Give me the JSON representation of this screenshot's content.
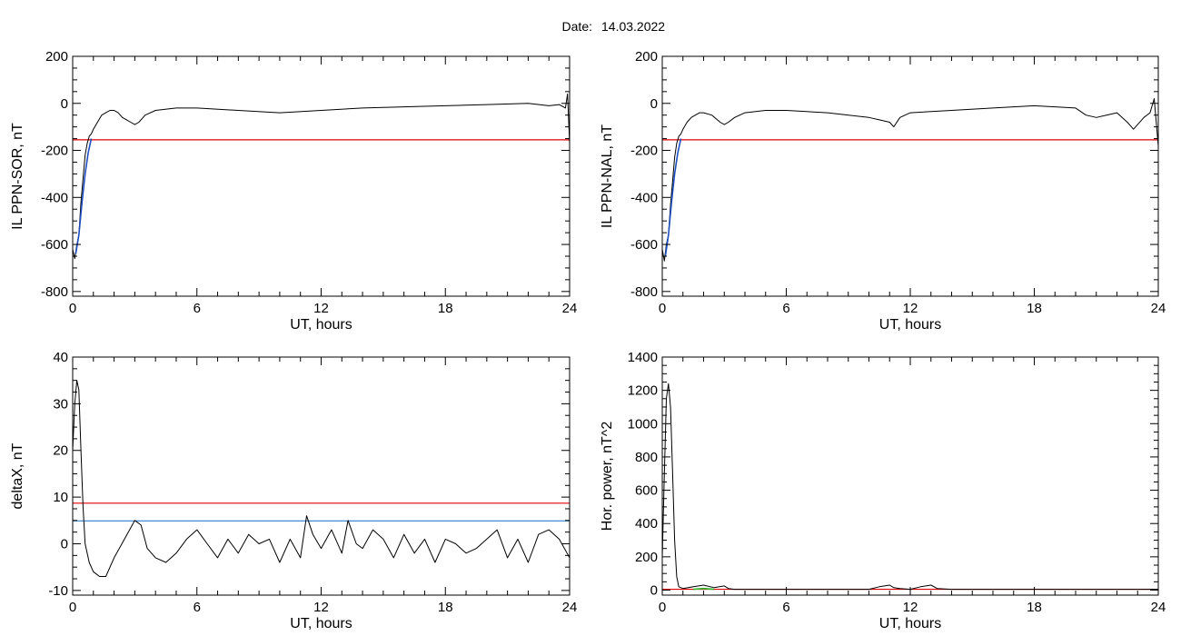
{
  "header": {
    "date_label": "Date:",
    "date_value": "14.03.2022"
  },
  "colors": {
    "background": "#ffffff",
    "axis": "#000000",
    "data_line": "#000000",
    "threshold_red": "#e00000",
    "threshold_blue": "#2a7fcf",
    "fit_blue": "#1f4fbf",
    "aux_green": "#2db52d"
  },
  "chart_data": [
    {
      "type": "line",
      "xlabel": "UT, hours",
      "ylabel": "IL PPN-SOR, nT",
      "xlim": [
        0,
        24
      ],
      "ylim": [
        -820,
        200
      ],
      "xticks": [
        0,
        6,
        12,
        18,
        24
      ],
      "yticks": [
        -800,
        -600,
        -400,
        -200,
        0,
        200
      ],
      "series": [
        {
          "values_x": [
            0.0,
            0.1,
            0.2,
            0.3,
            0.4,
            0.5,
            0.6,
            0.7,
            0.8,
            0.9,
            1.0,
            1.2,
            1.4,
            1.6,
            1.8,
            2.0,
            2.2,
            2.4,
            2.6,
            2.8,
            3.0,
            3.2,
            3.5,
            4.0,
            5.0,
            6.0,
            8.0,
            10.0,
            12.0,
            14.0,
            16.0,
            18.0,
            20.0,
            22.0,
            23.0,
            23.5,
            23.8,
            23.9,
            24.0
          ],
          "values_y": [
            -620,
            -660,
            -600,
            -560,
            -420,
            -320,
            -220,
            -170,
            -140,
            -130,
            -110,
            -80,
            -50,
            -40,
            -30,
            -30,
            -40,
            -60,
            -70,
            -80,
            -90,
            -80,
            -50,
            -30,
            -20,
            -20,
            -30,
            -40,
            -30,
            -20,
            -15,
            -10,
            -5,
            0,
            -10,
            -5,
            -20,
            40,
            -170
          ]
        },
        {
          "values_x": [
            0.15,
            0.3,
            0.45,
            0.6,
            0.75,
            0.9
          ],
          "values_y": [
            -640,
            -560,
            -420,
            -300,
            -210,
            -150
          ]
        }
      ],
      "hlines": [
        -155
      ]
    },
    {
      "type": "line",
      "xlabel": "UT, hours",
      "ylabel": "IL PPN-NAL, nT",
      "xlim": [
        0,
        24
      ],
      "ylim": [
        -820,
        200
      ],
      "xticks": [
        0,
        6,
        12,
        18,
        24
      ],
      "yticks": [
        -800,
        -600,
        -400,
        -200,
        0,
        200
      ],
      "series": [
        {
          "values_x": [
            0.0,
            0.1,
            0.2,
            0.3,
            0.4,
            0.5,
            0.6,
            0.7,
            0.8,
            0.9,
            1.0,
            1.2,
            1.4,
            1.6,
            1.8,
            2.0,
            2.4,
            2.8,
            3.0,
            3.2,
            3.5,
            4.0,
            5.0,
            6.0,
            8.0,
            10.0,
            10.5,
            11.0,
            11.2,
            11.5,
            12.0,
            14.0,
            16.0,
            18.0,
            20.0,
            20.5,
            21.0,
            22.0,
            22.5,
            22.8,
            23.0,
            23.3,
            23.6,
            23.8,
            24.0
          ],
          "values_y": [
            -620,
            -670,
            -600,
            -560,
            -430,
            -330,
            -230,
            -170,
            -140,
            -130,
            -110,
            -80,
            -60,
            -50,
            -40,
            -40,
            -50,
            -80,
            -90,
            -80,
            -60,
            -40,
            -30,
            -30,
            -40,
            -60,
            -70,
            -80,
            -100,
            -60,
            -40,
            -30,
            -20,
            -10,
            -20,
            -50,
            -60,
            -40,
            -80,
            -110,
            -90,
            -60,
            -40,
            20,
            -180
          ]
        },
        {
          "values_x": [
            0.15,
            0.3,
            0.45,
            0.6,
            0.75,
            0.9
          ],
          "values_y": [
            -650,
            -560,
            -420,
            -300,
            -210,
            -150
          ]
        }
      ],
      "hlines": [
        -155
      ]
    },
    {
      "type": "line",
      "xlabel": "UT, hours",
      "ylabel": "deltaX, nT",
      "xlim": [
        0,
        24
      ],
      "ylim": [
        -11,
        40
      ],
      "xticks": [
        0,
        6,
        12,
        18,
        24
      ],
      "yticks": [
        -10,
        0,
        10,
        20,
        30,
        40
      ],
      "series": [
        {
          "values_x": [
            0.0,
            0.1,
            0.2,
            0.3,
            0.4,
            0.5,
            0.6,
            0.8,
            1.0,
            1.3,
            1.6,
            2.0,
            2.5,
            3.0,
            3.3,
            3.6,
            4.0,
            4.5,
            5.0,
            5.5,
            6.0,
            6.5,
            7.0,
            7.5,
            8.0,
            8.5,
            9.0,
            9.5,
            10.0,
            10.5,
            11.0,
            11.3,
            11.6,
            12.0,
            12.5,
            13.0,
            13.3,
            13.7,
            14.0,
            14.5,
            15.0,
            15.5,
            16.0,
            16.5,
            17.0,
            17.5,
            18.0,
            18.5,
            19.0,
            19.5,
            20.0,
            20.5,
            21.0,
            21.5,
            22.0,
            22.5,
            23.0,
            23.5,
            24.0
          ],
          "values_y": [
            20,
            30,
            35,
            33,
            20,
            8,
            0,
            -4,
            -6,
            -7,
            -7,
            -3,
            1,
            5,
            4,
            -1,
            -3,
            -4,
            -2,
            1,
            3,
            0,
            -3,
            1,
            -2,
            2,
            0,
            1,
            -4,
            1,
            -3,
            6,
            2,
            -1,
            3,
            -2,
            5,
            0,
            -1,
            3,
            1,
            -3,
            2,
            -2,
            1,
            -4,
            1,
            0,
            -2,
            -1,
            1,
            3,
            -3,
            1,
            -4,
            2,
            3,
            1,
            -3
          ]
        }
      ],
      "hlines": [
        8.7,
        4.9
      ]
    },
    {
      "type": "line",
      "xlabel": "UT, hours",
      "ylabel": "Hor. power, nT^2",
      "xlim": [
        0,
        24
      ],
      "ylim": [
        -30,
        1400
      ],
      "xticks": [
        0,
        6,
        12,
        18,
        24
      ],
      "yticks": [
        0,
        200,
        400,
        600,
        800,
        1000,
        1200,
        1400
      ],
      "series": [
        {
          "values_x": [
            0.0,
            0.1,
            0.2,
            0.3,
            0.4,
            0.5,
            0.6,
            0.7,
            0.8,
            1.0,
            1.5,
            2.0,
            2.5,
            3.0,
            3.2,
            3.5,
            4.0,
            6.0,
            8.0,
            10.0,
            10.5,
            11.0,
            11.2,
            11.5,
            12.0,
            12.5,
            13.0,
            13.3,
            14.0,
            16.0,
            18.0,
            20.0,
            22.0,
            24.0
          ],
          "values_y": [
            200,
            700,
            1150,
            1240,
            1100,
            700,
            300,
            80,
            20,
            10,
            20,
            30,
            15,
            25,
            10,
            5,
            5,
            5,
            5,
            5,
            20,
            30,
            15,
            10,
            5,
            20,
            30,
            10,
            5,
            5,
            5,
            5,
            5,
            5
          ]
        },
        {
          "values_x": [
            1.5,
            2.0,
            2.5
          ],
          "values_y": [
            5,
            10,
            5
          ]
        }
      ],
      "hlines": [
        5
      ]
    }
  ]
}
